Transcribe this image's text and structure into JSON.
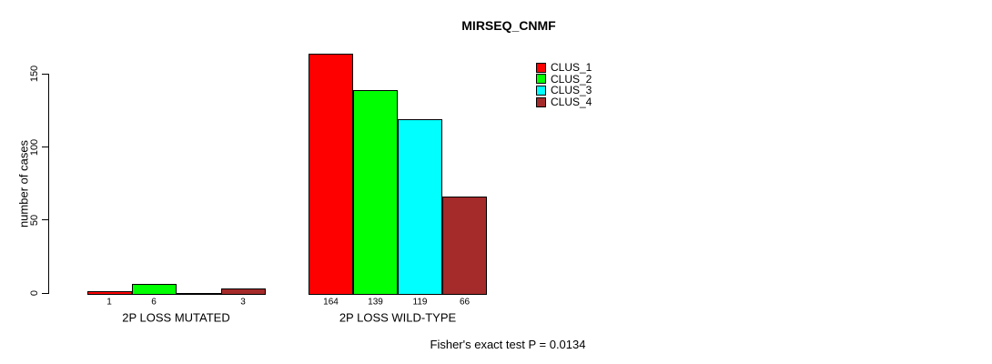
{
  "title": "MIRSEQ_CNMF",
  "annotation": "Fisher's exact test P = 0.0134",
  "y_axis": {
    "label": "number of cases"
  },
  "legend": [
    {
      "label": "CLUS_1",
      "color": "#FF0000"
    },
    {
      "label": "CLUS_2",
      "color": "#00FF00"
    },
    {
      "label": "CLUS_3",
      "color": "#00FFFF"
    },
    {
      "label": "CLUS_4",
      "color": "#A52A2A"
    }
  ],
  "chart_data": {
    "type": "bar",
    "title": "MIRSEQ_CNMF",
    "ylabel": "number of cases",
    "ylim": [
      0,
      150
    ],
    "yticks": [
      0,
      50,
      100,
      150
    ],
    "grid": false,
    "legend_position": "top-right",
    "series": [
      "CLUS_1",
      "CLUS_2",
      "CLUS_3",
      "CLUS_4"
    ],
    "colors": [
      "#FF0000",
      "#00FF00",
      "#00FFFF",
      "#A52A2A"
    ],
    "categories": [
      "2P LOSS MUTATED",
      "2P LOSS WILD-TYPE"
    ],
    "groups": [
      {
        "category": "2P LOSS MUTATED",
        "values": [
          1,
          6,
          0,
          3
        ],
        "bar_labels": [
          "1",
          "6",
          "",
          "3"
        ]
      },
      {
        "category": "2P LOSS WILD-TYPE",
        "values": [
          164,
          139,
          119,
          66
        ],
        "bar_labels": [
          "164",
          "139",
          "119",
          "66"
        ]
      }
    ],
    "annotation": "Fisher's exact test P = 0.0134"
  }
}
